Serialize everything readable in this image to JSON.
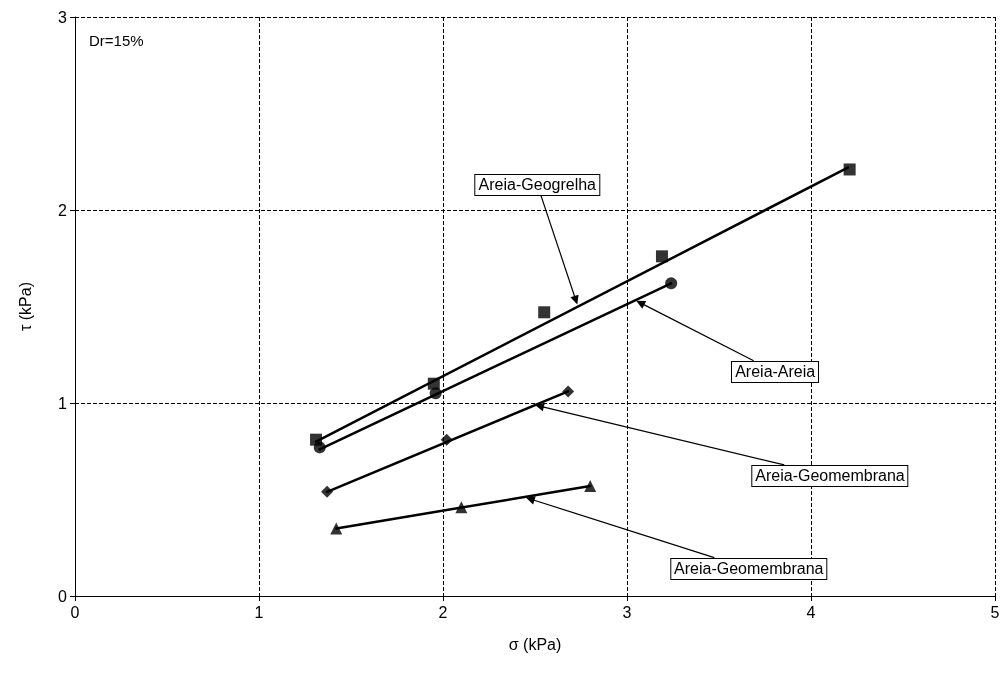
{
  "chart_data": {
    "type": "scatter",
    "xlabel": "σ (kPa)",
    "ylabel": "τ (kPa)",
    "xlim": [
      0,
      5
    ],
    "xticks": [
      0,
      1,
      2,
      3,
      4,
      5
    ],
    "ylim": [
      0,
      3
    ],
    "yticks": [
      0,
      1,
      2,
      3
    ],
    "grid": true,
    "series": [
      {
        "color": "#000000",
        "marker": "square",
        "x": [
          1.31,
          1.95,
          2.55,
          3.19,
          4.21
        ],
        "values": [
          0.81,
          1.1,
          1.47,
          1.76,
          2.21
        ]
      },
      {
        "color": "#000000",
        "marker": "circle",
        "x": [
          1.33,
          1.96,
          3.24
        ],
        "values": [
          0.77,
          1.05,
          1.62
        ]
      },
      {
        "color": "#000000",
        "marker": "diamond",
        "x": [
          1.37,
          2.02,
          2.68
        ],
        "values": [
          0.54,
          0.81,
          1.06
        ]
      },
      {
        "color": "#000000",
        "marker": "triangle",
        "x": [
          1.42,
          2.1,
          2.8
        ],
        "values": [
          0.35,
          0.46,
          0.57
        ]
      },
      {
        "type": "line",
        "color": "#000000",
        "marker": "none",
        "x": [
          1.31,
          4.2
        ],
        "values": [
          0.8,
          2.22
        ]
      },
      {
        "type": "line",
        "color": "#000000",
        "marker": "none",
        "x": [
          1.33,
          3.24
        ],
        "values": [
          0.76,
          1.62
        ]
      },
      {
        "type": "line",
        "color": "#000000",
        "marker": "none",
        "x": [
          1.37,
          2.68
        ],
        "values": [
          0.54,
          1.06
        ]
      },
      {
        "type": "line",
        "color": "#000000",
        "marker": "none",
        "x": [
          1.42,
          2.8
        ],
        "values": [
          0.35,
          0.57
        ]
      }
    ],
    "annotations": [
      "Dr=15%",
      {
        "text": "Areia-Geogrelha",
        "x": 2.73,
        "y": 1.51
      },
      {
        "text": "Areia-Areia",
        "x": 3.05,
        "y": 1.53
      },
      {
        "text": "Areia-Geomembrana",
        "x": 2.5,
        "y": 0.99
      },
      {
        "text": "Areia-Geomembrana",
        "x": 2.45,
        "y": 0.51
      }
    ]
  }
}
